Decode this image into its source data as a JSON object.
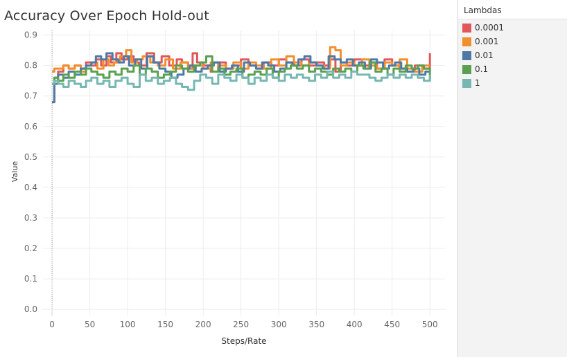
{
  "chart_data": {
    "type": "line",
    "title": "Accuracy Over Epoch Hold-out",
    "xlabel": "Steps/Rate",
    "ylabel": "Value",
    "xlim": [
      -12,
      520
    ],
    "ylim": [
      -0.02,
      0.915
    ],
    "xticks": [
      0,
      50,
      100,
      150,
      200,
      250,
      300,
      350,
      400,
      450,
      500
    ],
    "yticks": [
      0.0,
      0.1,
      0.2,
      0.3,
      0.4,
      0.5,
      0.6,
      0.7,
      0.8,
      0.9
    ],
    "legend_title": "Lambdas",
    "legend_position": "right",
    "grid": true,
    "series": [
      {
        "name": "0.0001",
        "color": "#e15759",
        "x": [
          0,
          3,
          8,
          15,
          22,
          30,
          38,
          45,
          52,
          58,
          65,
          72,
          78,
          85,
          92,
          100,
          108,
          115,
          125,
          135,
          145,
          155,
          165,
          172,
          180,
          186,
          192,
          200,
          210,
          220,
          230,
          240,
          250,
          260,
          270,
          280,
          290,
          300,
          310,
          320,
          330,
          340,
          350,
          360,
          368,
          375,
          382,
          390,
          400,
          410,
          420,
          430,
          440,
          450,
          460,
          470,
          480,
          490,
          500
        ],
        "y": [
          0.68,
          0.76,
          0.78,
          0.8,
          0.79,
          0.8,
          0.79,
          0.81,
          0.8,
          0.82,
          0.8,
          0.83,
          0.81,
          0.84,
          0.82,
          0.83,
          0.81,
          0.8,
          0.84,
          0.81,
          0.83,
          0.8,
          0.82,
          0.81,
          0.79,
          0.84,
          0.81,
          0.8,
          0.78,
          0.81,
          0.79,
          0.8,
          0.82,
          0.8,
          0.79,
          0.81,
          0.8,
          0.82,
          0.81,
          0.8,
          0.82,
          0.8,
          0.81,
          0.8,
          0.82,
          0.78,
          0.81,
          0.8,
          0.82,
          0.8,
          0.81,
          0.79,
          0.82,
          0.8,
          0.79,
          0.78,
          0.8,
          0.79,
          0.84
        ]
      },
      {
        "name": "0.001",
        "color": "#f28e2b",
        "x": [
          0,
          3,
          8,
          15,
          22,
          30,
          38,
          45,
          52,
          60,
          68,
          75,
          82,
          90,
          98,
          105,
          112,
          120,
          130,
          140,
          150,
          160,
          170,
          180,
          190,
          200,
          210,
          220,
          230,
          240,
          250,
          260,
          270,
          280,
          290,
          300,
          310,
          320,
          330,
          340,
          350,
          360,
          368,
          375,
          382,
          390,
          400,
          410,
          420,
          430,
          440,
          450,
          460,
          470,
          480,
          490,
          500
        ],
        "y": [
          0.78,
          0.79,
          0.79,
          0.8,
          0.79,
          0.8,
          0.78,
          0.8,
          0.81,
          0.79,
          0.82,
          0.8,
          0.81,
          0.83,
          0.85,
          0.81,
          0.82,
          0.83,
          0.81,
          0.8,
          0.82,
          0.79,
          0.81,
          0.79,
          0.8,
          0.79,
          0.81,
          0.8,
          0.79,
          0.81,
          0.79,
          0.81,
          0.8,
          0.79,
          0.82,
          0.8,
          0.83,
          0.81,
          0.8,
          0.81,
          0.8,
          0.79,
          0.86,
          0.85,
          0.8,
          0.81,
          0.8,
          0.82,
          0.8,
          0.79,
          0.81,
          0.8,
          0.82,
          0.79,
          0.78,
          0.8,
          0.8
        ]
      },
      {
        "name": "0.01",
        "color": "#4e79a7",
        "x": [
          0,
          3,
          8,
          15,
          22,
          30,
          38,
          45,
          52,
          58,
          65,
          72,
          80,
          88,
          95,
          102,
          110,
          118,
          126,
          134,
          142,
          150,
          158,
          166,
          174,
          182,
          190,
          198,
          206,
          214,
          222,
          230,
          238,
          246,
          254,
          262,
          270,
          278,
          286,
          294,
          302,
          310,
          318,
          326,
          334,
          342,
          350,
          358,
          366,
          374,
          382,
          390,
          398,
          406,
          414,
          422,
          430,
          438,
          446,
          454,
          462,
          470,
          478,
          486,
          494,
          500
        ],
        "y": [
          0.68,
          0.74,
          0.77,
          0.76,
          0.78,
          0.77,
          0.79,
          0.8,
          0.81,
          0.83,
          0.82,
          0.84,
          0.82,
          0.81,
          0.83,
          0.8,
          0.82,
          0.79,
          0.83,
          0.81,
          0.79,
          0.78,
          0.76,
          0.77,
          0.79,
          0.8,
          0.78,
          0.79,
          0.8,
          0.81,
          0.78,
          0.79,
          0.8,
          0.78,
          0.81,
          0.8,
          0.79,
          0.81,
          0.8,
          0.78,
          0.79,
          0.81,
          0.8,
          0.82,
          0.83,
          0.81,
          0.8,
          0.79,
          0.83,
          0.82,
          0.81,
          0.82,
          0.8,
          0.81,
          0.79,
          0.82,
          0.81,
          0.79,
          0.8,
          0.81,
          0.79,
          0.78,
          0.79,
          0.77,
          0.78,
          0.78
        ]
      },
      {
        "name": "0.1",
        "color": "#59a14f",
        "x": [
          0,
          3,
          8,
          15,
          22,
          30,
          38,
          45,
          52,
          60,
          68,
          76,
          84,
          92,
          100,
          108,
          116,
          124,
          132,
          140,
          148,
          156,
          164,
          172,
          180,
          188,
          196,
          204,
          212,
          220,
          228,
          236,
          244,
          252,
          260,
          268,
          276,
          284,
          292,
          300,
          308,
          316,
          324,
          332,
          340,
          348,
          356,
          364,
          372,
          380,
          388,
          396,
          404,
          412,
          420,
          428,
          436,
          444,
          452,
          460,
          468,
          476,
          484,
          492,
          500
        ],
        "y": [
          0.74,
          0.76,
          0.75,
          0.77,
          0.76,
          0.78,
          0.77,
          0.79,
          0.78,
          0.77,
          0.76,
          0.78,
          0.77,
          0.79,
          0.78,
          0.8,
          0.77,
          0.79,
          0.78,
          0.76,
          0.77,
          0.78,
          0.8,
          0.79,
          0.78,
          0.8,
          0.81,
          0.83,
          0.78,
          0.79,
          0.77,
          0.78,
          0.79,
          0.76,
          0.77,
          0.78,
          0.77,
          0.79,
          0.76,
          0.78,
          0.79,
          0.8,
          0.79,
          0.8,
          0.78,
          0.79,
          0.78,
          0.77,
          0.79,
          0.78,
          0.79,
          0.78,
          0.8,
          0.79,
          0.81,
          0.78,
          0.79,
          0.77,
          0.79,
          0.78,
          0.8,
          0.79,
          0.8,
          0.79,
          0.75
        ]
      },
      {
        "name": "1",
        "color": "#76b7b2",
        "x": [
          0,
          3,
          8,
          15,
          22,
          30,
          38,
          45,
          52,
          60,
          68,
          76,
          84,
          92,
          100,
          108,
          116,
          124,
          132,
          140,
          148,
          156,
          164,
          172,
          180,
          188,
          196,
          204,
          212,
          220,
          228,
          236,
          244,
          252,
          260,
          268,
          276,
          284,
          292,
          300,
          308,
          316,
          324,
          332,
          340,
          348,
          356,
          364,
          372,
          380,
          388,
          396,
          404,
          412,
          420,
          428,
          436,
          444,
          452,
          460,
          468,
          476,
          484,
          492,
          500
        ],
        "y": [
          0.74,
          0.75,
          0.74,
          0.73,
          0.75,
          0.74,
          0.73,
          0.75,
          0.76,
          0.74,
          0.75,
          0.73,
          0.75,
          0.76,
          0.74,
          0.73,
          0.77,
          0.75,
          0.76,
          0.74,
          0.75,
          0.76,
          0.74,
          0.73,
          0.72,
          0.75,
          0.77,
          0.76,
          0.74,
          0.77,
          0.76,
          0.75,
          0.77,
          0.76,
          0.74,
          0.76,
          0.75,
          0.77,
          0.76,
          0.75,
          0.77,
          0.76,
          0.77,
          0.76,
          0.75,
          0.77,
          0.76,
          0.78,
          0.76,
          0.77,
          0.76,
          0.78,
          0.77,
          0.77,
          0.76,
          0.75,
          0.76,
          0.77,
          0.76,
          0.77,
          0.76,
          0.77,
          0.76,
          0.75,
          0.77
        ]
      }
    ]
  }
}
